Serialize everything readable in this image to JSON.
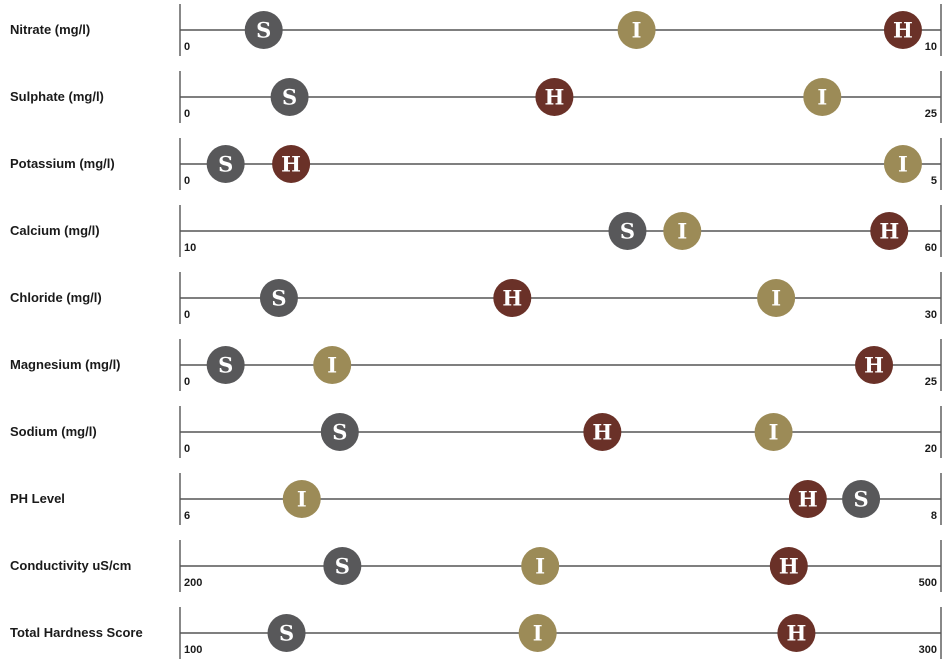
{
  "chart_data": {
    "type": "dot-range",
    "legend_keys": {
      "S": {
        "color": "#58585a"
      },
      "I": {
        "color": "#9c8b57"
      },
      "H": {
        "color": "#6a3128"
      }
    },
    "rows": [
      {
        "label": "Nitrate (mg/l)",
        "min": 0,
        "max": 10,
        "min_label": "0",
        "max_label": "10",
        "points": [
          {
            "key": "S",
            "value": 1.1
          },
          {
            "key": "I",
            "value": 6.0
          },
          {
            "key": "H",
            "value": 9.5
          }
        ]
      },
      {
        "label": "Sulphate (mg/l)",
        "min": 0,
        "max": 25,
        "min_label": "0",
        "max_label": "25",
        "points": [
          {
            "key": "S",
            "value": 3.6
          },
          {
            "key": "H",
            "value": 12.3
          },
          {
            "key": "I",
            "value": 21.1
          }
        ]
      },
      {
        "label": "Potassium (mg/l)",
        "min": 0,
        "max": 5,
        "min_label": "0",
        "max_label": "5",
        "points": [
          {
            "key": "S",
            "value": 0.3
          },
          {
            "key": "H",
            "value": 0.73
          },
          {
            "key": "I",
            "value": 4.75
          }
        ]
      },
      {
        "label": "Calcium (mg/l)",
        "min": 10,
        "max": 60,
        "min_label": "10",
        "max_label": "60",
        "points": [
          {
            "key": "S",
            "value": 39.4
          },
          {
            "key": "I",
            "value": 43.0
          },
          {
            "key": "H",
            "value": 56.6
          }
        ]
      },
      {
        "label": "Chloride (mg/l)",
        "min": 0,
        "max": 30,
        "min_label": "0",
        "max_label": "30",
        "points": [
          {
            "key": "S",
            "value": 3.9
          },
          {
            "key": "H",
            "value": 13.1
          },
          {
            "key": "I",
            "value": 23.5
          }
        ]
      },
      {
        "label": "Magnesium (mg/l)",
        "min": 0,
        "max": 25,
        "min_label": "0",
        "max_label": "25",
        "points": [
          {
            "key": "S",
            "value": 1.5
          },
          {
            "key": "I",
            "value": 5.0
          },
          {
            "key": "H",
            "value": 22.8
          }
        ]
      },
      {
        "label": "Sodium (mg/l)",
        "min": 0,
        "max": 20,
        "min_label": "0",
        "max_label": "20",
        "points": [
          {
            "key": "S",
            "value": 4.2
          },
          {
            "key": "H",
            "value": 11.1
          },
          {
            "key": "I",
            "value": 15.6
          }
        ]
      },
      {
        "label": "PH Level",
        "min": 6,
        "max": 8,
        "min_label": "6",
        "max_label": "8",
        "points": [
          {
            "key": "I",
            "value": 6.32
          },
          {
            "key": "H",
            "value": 7.65
          },
          {
            "key": "S",
            "value": 7.79
          }
        ]
      },
      {
        "label": "Conductivity uS/cm",
        "min": 200,
        "max": 500,
        "min_label": "200",
        "max_label": "500",
        "points": [
          {
            "key": "S",
            "value": 264
          },
          {
            "key": "I",
            "value": 342
          },
          {
            "key": "H",
            "value": 440
          }
        ]
      },
      {
        "label": "Total Hardness Score",
        "min": 100,
        "max": 300,
        "min_label": "100",
        "max_label": "300",
        "points": [
          {
            "key": "S",
            "value": 128
          },
          {
            "key": "I",
            "value": 194
          },
          {
            "key": "H",
            "value": 262
          }
        ]
      }
    ]
  }
}
